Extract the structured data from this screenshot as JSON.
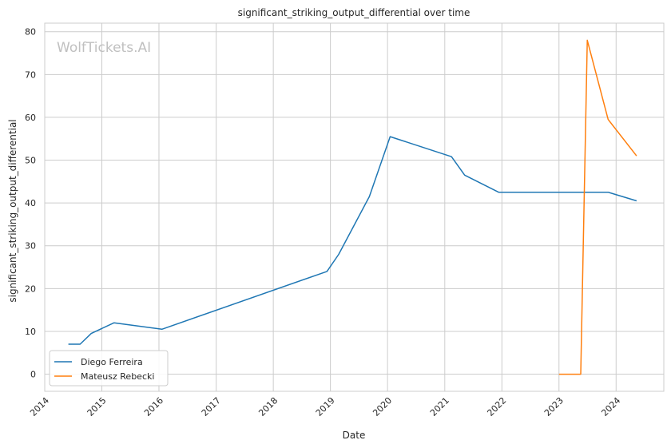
{
  "chart_data": {
    "type": "line",
    "title": "significant_striking_output_differential over time",
    "xlabel": "Date",
    "ylabel": "significant_striking_output_differential",
    "watermark": "WolfTickets.AI",
    "xlim": [
      "2014-01-01",
      "2024-11-01"
    ],
    "ylim": [
      -4,
      82
    ],
    "x_ticks": [
      "2014",
      "2015",
      "2016",
      "2017",
      "2018",
      "2019",
      "2020",
      "2021",
      "2022",
      "2023",
      "2024"
    ],
    "y_ticks": [
      0,
      10,
      20,
      30,
      40,
      50,
      60,
      70,
      80
    ],
    "grid": true,
    "legend_position": "lower-left",
    "series": [
      {
        "name": "Diego Ferreira",
        "color": "#1f77b4",
        "points": [
          {
            "x": "2014-06-01",
            "y": 7
          },
          {
            "x": "2014-08-15",
            "y": 7
          },
          {
            "x": "2014-10-25",
            "y": 9.5
          },
          {
            "x": "2015-03-20",
            "y": 12
          },
          {
            "x": "2016-01-20",
            "y": 10.5
          },
          {
            "x": "2018-12-10",
            "y": 24
          },
          {
            "x": "2019-02-23",
            "y": 28
          },
          {
            "x": "2019-09-07",
            "y": 41.5
          },
          {
            "x": "2020-01-18",
            "y": 55.5
          },
          {
            "x": "2021-02-13",
            "y": 50.8
          },
          {
            "x": "2021-05-08",
            "y": 46.5
          },
          {
            "x": "2021-12-11",
            "y": 42.5
          },
          {
            "x": "2023-01-21",
            "y": 42.5
          },
          {
            "x": "2023-11-11",
            "y": 42.5
          },
          {
            "x": "2024-05-11",
            "y": 40.5
          }
        ]
      },
      {
        "name": "Mateusz Rebecki",
        "color": "#ff7f0e",
        "points": [
          {
            "x": "2023-01-01",
            "y": 0
          },
          {
            "x": "2023-05-20",
            "y": 0
          },
          {
            "x": "2023-07-01",
            "y": 78
          },
          {
            "x": "2023-11-11",
            "y": 59.5
          },
          {
            "x": "2024-05-11",
            "y": 51
          }
        ]
      }
    ]
  }
}
